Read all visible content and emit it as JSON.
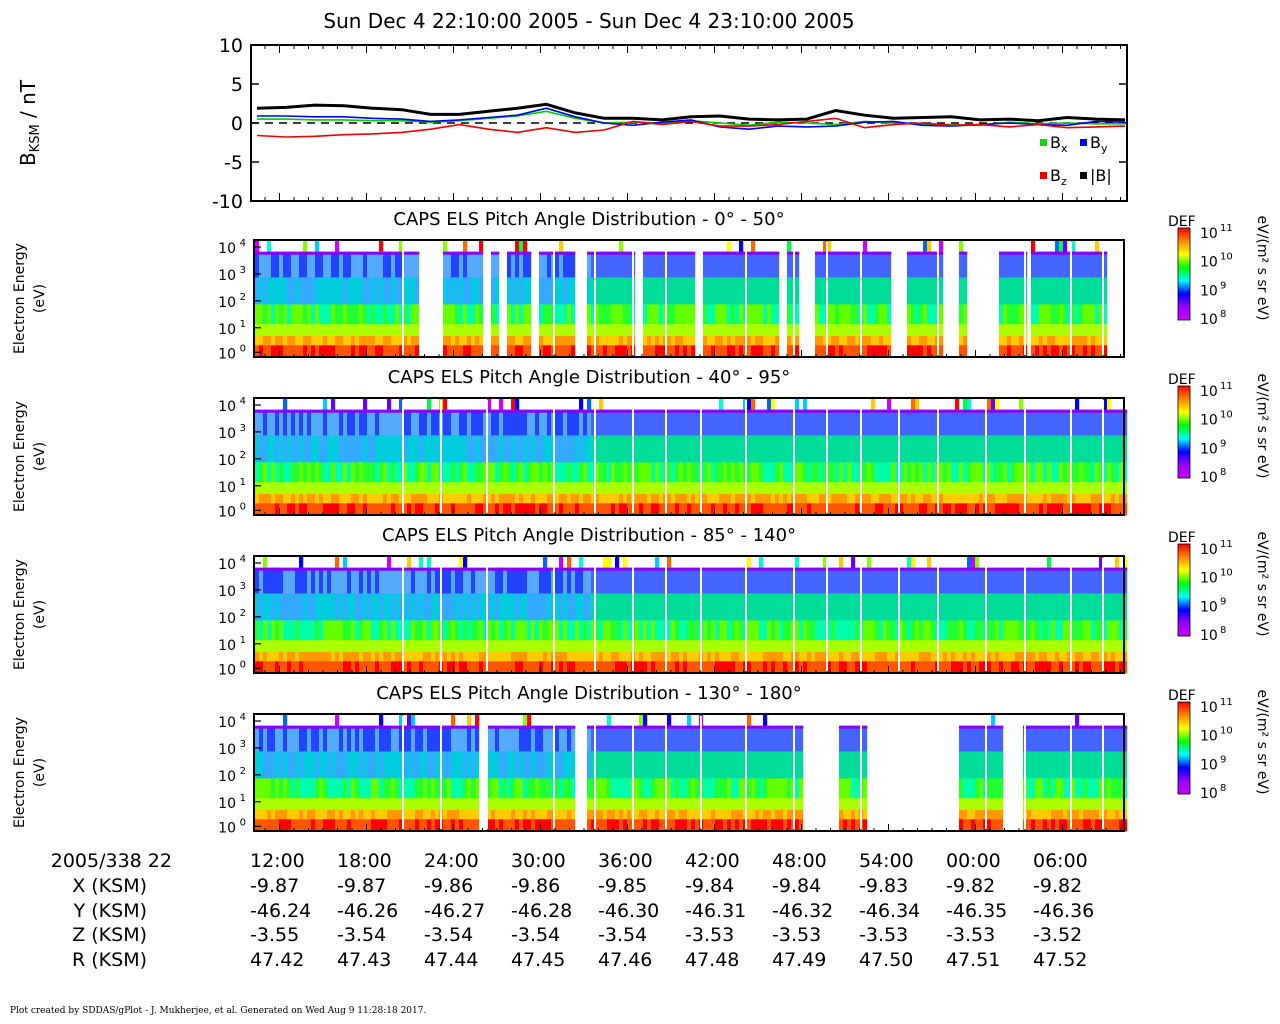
{
  "title": "Sun Dec 4 22:10:00 2005 - Sun Dec 4 23:10:00 2005",
  "mag": {
    "ylabel_main": "B",
    "ylabel_sub": "KSM",
    "ylabel_unit": " / nT",
    "ylim": [
      -10,
      10
    ],
    "ytick_labels": [
      "10",
      "5",
      "0",
      "-5",
      "-10"
    ],
    "legend": [
      {
        "name": "x",
        "color": "#00dd00"
      },
      {
        "name": "y",
        "color": "#0000ee"
      },
      {
        "name": "z",
        "color": "#ee0000"
      },
      {
        "name": "|B|",
        "color": "#000000"
      }
    ]
  },
  "spectrogram_common": {
    "ylabel_line1": "Electron Energy",
    "ylabel_line2": "(eV)",
    "ytick_labels": [
      "4",
      "3",
      "2",
      "1",
      "0"
    ],
    "ytick_base": "10",
    "colorbar_label": "DEF",
    "colorbar_unit": "eV/(m² s sr eV)",
    "colorbar_ticks": [
      "11",
      "10",
      "9",
      "8"
    ],
    "colorbar_colors": [
      "#ff0000",
      "#ff8800",
      "#ffff00",
      "#00ff00",
      "#00ffff",
      "#0000ff",
      "#9900ff",
      "#cc00ff"
    ]
  },
  "panels": [
    {
      "title": "CAPS ELS Pitch Angle Distribution - 0° - 50°"
    },
    {
      "title": "CAPS ELS Pitch Angle Distribution - 40° - 95°"
    },
    {
      "title": "CAPS ELS Pitch Angle Distribution - 85° - 140°"
    },
    {
      "title": "CAPS ELS Pitch Angle Distribution - 130° - 180°"
    }
  ],
  "axis_table": {
    "row_labels": [
      "2005/338 22",
      "X (KSM)",
      "Y (KSM)",
      "Z (KSM)",
      "R (KSM)"
    ],
    "times": [
      "12:00",
      "18:00",
      "24:00",
      "30:00",
      "36:00",
      "42:00",
      "48:00",
      "54:00",
      "00:00",
      "06:00"
    ],
    "X": [
      "-9.87",
      "-9.87",
      "-9.86",
      "-9.86",
      "-9.85",
      "-9.84",
      "-9.84",
      "-9.83",
      "-9.82",
      "-9.82"
    ],
    "Y": [
      "-46.24",
      "-46.26",
      "-46.27",
      "-46.28",
      "-46.30",
      "-46.31",
      "-46.32",
      "-46.34",
      "-46.35",
      "-46.36"
    ],
    "Z": [
      "-3.55",
      "-3.54",
      "-3.54",
      "-3.54",
      "-3.54",
      "-3.53",
      "-3.53",
      "-3.53",
      "-3.53",
      "-3.52"
    ],
    "R": [
      "47.42",
      "47.43",
      "47.44",
      "47.45",
      "47.46",
      "47.48",
      "47.49",
      "47.50",
      "47.51",
      "47.52"
    ]
  },
  "footer": "Plot created by SDDAS/gPlot - J. Mukherjee, et al.  Generated on Wed Aug 9 11:28:18 2017.",
  "chart_data": [
    {
      "type": "line",
      "title": "Sun Dec 4 22:10:00 2005 - Sun Dec 4 23:10:00 2005",
      "ylabel": "B KSM / nT",
      "ylim": [
        -10,
        10
      ],
      "x": [
        "22:10",
        "22:12",
        "22:14",
        "22:16",
        "22:18",
        "22:20",
        "22:22",
        "22:24",
        "22:26",
        "22:28",
        "22:30",
        "22:32",
        "22:34",
        "22:36",
        "22:38",
        "22:40",
        "22:42",
        "22:44",
        "22:46",
        "22:48",
        "22:50",
        "22:52",
        "22:54",
        "22:56",
        "22:58",
        "23:00",
        "23:02",
        "23:04",
        "23:06",
        "23:08",
        "23:10"
      ],
      "series": [
        {
          "name": "Bx",
          "values": [
            0.5,
            0.5,
            0.4,
            0.4,
            0.3,
            0.3,
            0.1,
            0.3,
            0.6,
            0.9,
            1.5,
            0.6,
            0.0,
            0.1,
            0.0,
            0.3,
            0.0,
            -0.3,
            0.1,
            0.0,
            -0.2,
            0.2,
            0.0,
            -0.2,
            -0.2,
            -0.3,
            0.1,
            -0.1,
            0.0,
            -0.1,
            -0.1
          ]
        },
        {
          "name": "By",
          "values": [
            0.9,
            0.9,
            0.8,
            0.8,
            0.6,
            0.5,
            0.2,
            0.4,
            0.7,
            1.0,
            1.9,
            0.8,
            0.0,
            -0.3,
            0.1,
            0.4,
            -0.5,
            -0.8,
            -0.4,
            -0.5,
            -0.4,
            0.1,
            0.2,
            -0.3,
            -0.4,
            -0.2,
            0.0,
            -0.2,
            -0.3,
            0.2,
            0.1
          ]
        },
        {
          "name": "Bz",
          "values": [
            -1.6,
            -1.8,
            -1.7,
            -1.5,
            -1.4,
            -1.2,
            -0.8,
            -0.2,
            -0.8,
            -1.2,
            -0.6,
            -1.2,
            -0.9,
            0.2,
            -0.2,
            0.2,
            -0.4,
            -0.4,
            -0.2,
            0.2,
            0.6,
            -0.6,
            -0.2,
            0.0,
            -0.3,
            -0.2,
            -0.5,
            -0.2,
            -0.6,
            -0.5,
            -0.4
          ]
        },
        {
          "name": "|B|",
          "values": [
            1.9,
            2.0,
            2.3,
            2.2,
            1.9,
            1.7,
            1.1,
            1.1,
            1.5,
            1.9,
            2.4,
            1.3,
            0.6,
            0.6,
            0.4,
            0.8,
            0.9,
            0.5,
            0.4,
            0.5,
            1.6,
            1.0,
            0.6,
            0.7,
            0.8,
            0.4,
            0.5,
            0.3,
            0.7,
            0.5,
            0.4
          ]
        }
      ]
    },
    {
      "type": "heatmap",
      "title": "CAPS ELS Pitch Angle Distribution",
      "ylabel": "Electron Energy (eV)",
      "yscale": "log",
      "ylim": [
        1,
        20000
      ],
      "colorbar": {
        "label": "DEF",
        "unit": "eV/(m² s sr eV)",
        "range": [
          100000000.0,
          100000000000.0
        ],
        "scale": "log"
      },
      "panels": [
        "0° - 50°",
        "40° - 95°",
        "85° - 140°",
        "130° - 180°"
      ]
    }
  ]
}
